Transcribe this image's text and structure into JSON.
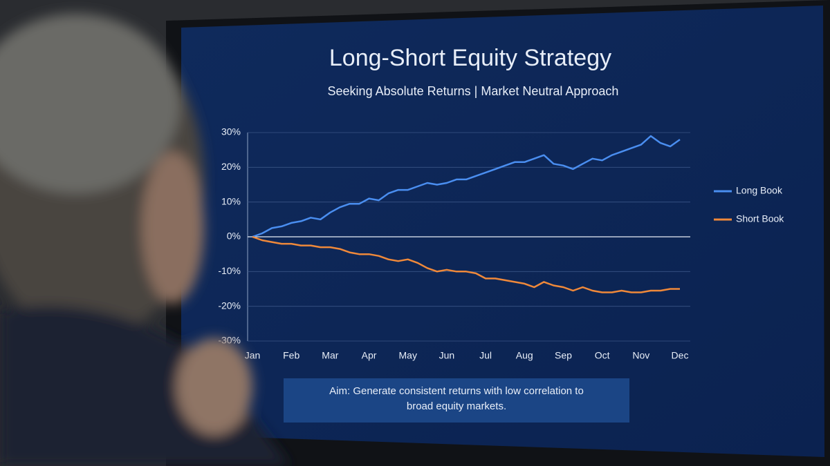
{
  "chart_data": {
    "type": "line",
    "title": "Long-Short Equity Strategy",
    "subtitle": "Seeking Absolute Returns  |  Market Neutral Approach",
    "categories": [
      "Jan",
      null,
      null,
      null,
      "Feb",
      null,
      null,
      null,
      "Mar",
      null,
      null,
      null,
      "Apr",
      null,
      null,
      null,
      "May",
      null,
      null,
      null,
      "Jun",
      null,
      null,
      null,
      "Jul",
      null,
      null,
      null,
      "Aug",
      null,
      null,
      null,
      "Sep",
      null,
      null,
      null,
      "Oct",
      null,
      null,
      null,
      "Nov",
      null,
      null,
      null,
      "Dec"
    ],
    "series": [
      {
        "name": "Long Book",
        "color": "#4a8ef0",
        "values": [
          0,
          1,
          2.5,
          3,
          4,
          4.5,
          5.5,
          5,
          7,
          8.5,
          9.5,
          9.5,
          11,
          10.5,
          12.5,
          13.5,
          13.5,
          14.5,
          15.5,
          15,
          15.5,
          16.5,
          16.5,
          17.5,
          18.5,
          19.5,
          20.5,
          21.5,
          21.5,
          22.5,
          23.5,
          21,
          20.5,
          19.5,
          21,
          22.5,
          22,
          23.5,
          24.5,
          25.5,
          26.5,
          29,
          27,
          26,
          28
        ]
      },
      {
        "name": "Short Book",
        "color": "#f0893a",
        "values": [
          0,
          -1,
          -1.5,
          -2,
          -2,
          -2.5,
          -2.5,
          -3,
          -3,
          -3.5,
          -4.5,
          -5,
          -5,
          -5.5,
          -6.5,
          -7,
          -6.5,
          -7.5,
          -9,
          -10,
          -9.5,
          -10,
          -10,
          -10.5,
          -12,
          -12,
          -12.5,
          -13,
          -13.5,
          -14.5,
          -13,
          -14,
          -14.5,
          -15.5,
          -14.5,
          -15.5,
          -16,
          -16,
          -15.5,
          -16,
          -16,
          -15.5,
          -15.5,
          -15,
          -15
        ]
      }
    ],
    "ylim": [
      -30,
      30
    ],
    "yticks": [
      {
        "value": -30,
        "label": "-30%"
      },
      {
        "value": -20,
        "label": "-20%"
      },
      {
        "value": -10,
        "label": "-10%"
      },
      {
        "value": 0,
        "label": "0%"
      },
      {
        "value": 10,
        "label": "10%"
      },
      {
        "value": 20,
        "label": "20%"
      },
      {
        "value": 30,
        "label": "30%"
      }
    ],
    "grid": true,
    "legend": "right",
    "annotation": "Aim: Generate consistent returns with low correlation to broad equity markets."
  }
}
